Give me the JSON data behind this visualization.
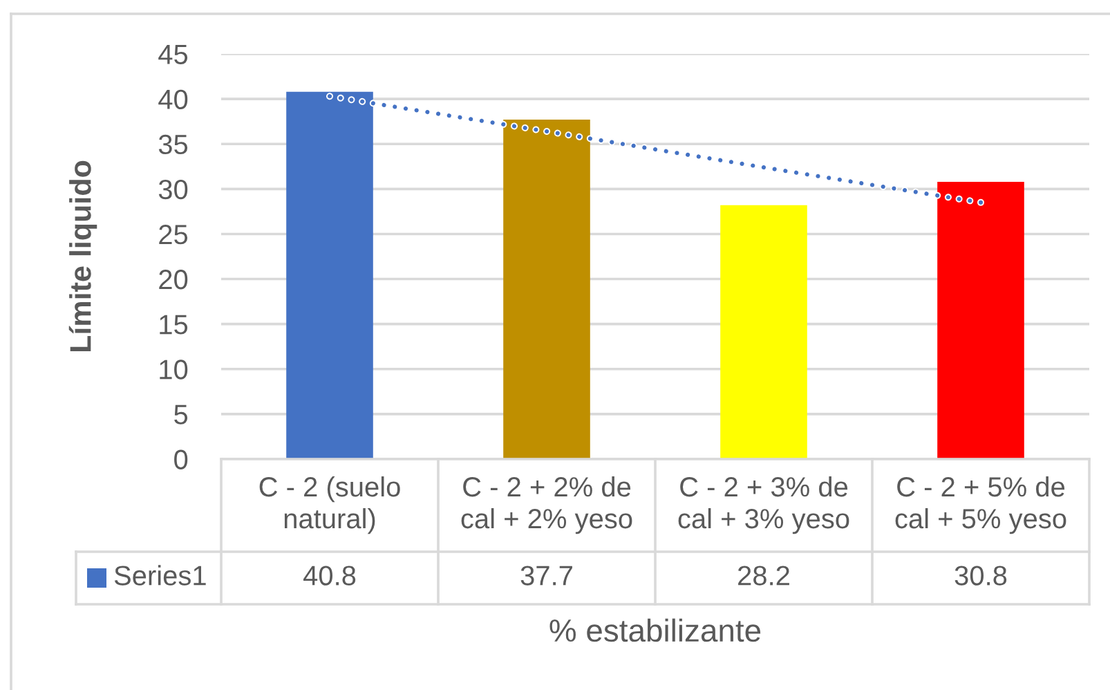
{
  "chart_data": {
    "type": "bar",
    "ylabel": "Límite liquido",
    "xlabel": "% estabilizante",
    "categories": [
      "C - 2 (suelo natural)",
      "C - 2 + 2% de cal + 2% yeso",
      "C - 2 + 3% de cal + 3% yeso",
      "C - 2 + 5% de cal + 5% yeso"
    ],
    "series": [
      {
        "name": "Series1",
        "color": "#4472c4",
        "colors": [
          "#4472c4",
          "#bf8f00",
          "#ffff00",
          "#ff0000"
        ],
        "values": [
          40.8,
          37.7,
          28.2,
          30.8
        ],
        "data_labels": true
      },
      {
        "type": "line",
        "color": "#4472c4",
        "line_style": "dotted",
        "values": [
          40.3,
          36.4,
          32.4,
          28.5
        ]
      }
    ],
    "ylim": [
      0,
      45
    ],
    "yticks": [
      0,
      5,
      10,
      15,
      20,
      25,
      30,
      35,
      40,
      45
    ],
    "grid": "y"
  }
}
